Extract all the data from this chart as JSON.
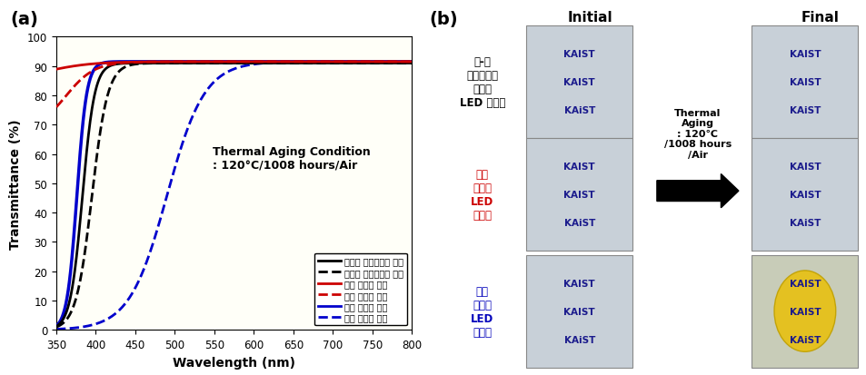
{
  "panel_a": {
    "xlabel": "Wavelength (nm)",
    "ylabel": "Transmittance (%)",
    "xlim": [
      350,
      800
    ],
    "ylim": [
      0,
      100
    ],
    "xticks": [
      350,
      400,
      450,
      500,
      550,
      600,
      650,
      700,
      750,
      800
    ],
    "yticks": [
      0,
      10,
      20,
      30,
      40,
      50,
      60,
      70,
      80,
      90,
      100
    ],
    "annotation_line1": "Thermal Aging Condition",
    "annotation_line2": ": 120°C/1008 hours/Air",
    "legend": [
      {
        "label": "광경화 하이브리머 초기",
        "color": "#000000",
        "linestyle": "solid"
      },
      {
        "label": "광경화 하이브리머 최종",
        "color": "#000000",
        "linestyle": "dashed"
      },
      {
        "label": "상용 실리콘 초기",
        "color": "#cc0000",
        "linestyle": "solid"
      },
      {
        "label": "상용 실리콘 최종",
        "color": "#cc0000",
        "linestyle": "dashed"
      },
      {
        "label": "상용 에폭시 초기",
        "color": "#0000cc",
        "linestyle": "solid"
      },
      {
        "label": "상용 에폭시 최종",
        "color": "#0000cc",
        "linestyle": "dashed"
      }
    ]
  },
  "panel_b": {
    "initial_label": "Initial",
    "final_label": "Final",
    "thermal_text": "Thermal\nAging\n: 120℃\n/1008 hours\n/Air",
    "row_labels": [
      {
        "text": "솔-젬\n하이브리드\n광경화\nLED 봉지재",
        "color": "#000000"
      },
      {
        "text": "상용\n실리콘\nLED\n봉지재",
        "color": "#cc0000"
      },
      {
        "text": "상용\n에폭시\nLED\n봉지재",
        "color": "#0000bb"
      }
    ],
    "img_bg_init": [
      "#c8d0d8",
      "#c8d0d8",
      "#c8d0d8"
    ],
    "img_bg_final": [
      "#c8d0d8",
      "#c8d0d8",
      "#c8ccb8"
    ],
    "kaist_color": "#1a1a8c",
    "kaist_lines": [
      "KAIST",
      "KAIST",
      "KAiST"
    ],
    "arrow_color": "#000000",
    "yellow_ellipse_color": "#e8c010"
  }
}
